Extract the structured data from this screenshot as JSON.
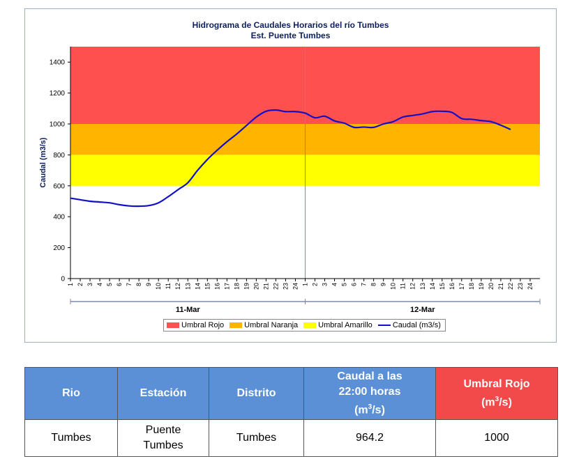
{
  "chart_data": {
    "type": "line",
    "title": "Hidrograma de Caudales Horarios del río Tumbes",
    "subtitle": "Est. Puente Tumbes",
    "ylabel": "Caudal  (m3/s)",
    "ylim": [
      0,
      1500
    ],
    "yticks": [
      0,
      200,
      400,
      600,
      800,
      1000,
      1200,
      1400
    ],
    "days": [
      "11-Mar",
      "12-Mar"
    ],
    "hour_ticks": [
      "1",
      "2",
      "3",
      "4",
      "5",
      "6",
      "7",
      "8",
      "9",
      "10",
      "11",
      "12",
      "13",
      "14",
      "15",
      "16",
      "17",
      "18",
      "19",
      "20",
      "21",
      "22",
      "23",
      "24"
    ],
    "bands": [
      {
        "name": "Umbral Rojo",
        "from": 1000,
        "to": 1500,
        "color": "#ff5050"
      },
      {
        "name": "Umbral Naranja",
        "from": 800,
        "to": 1000,
        "color": "#ffb400"
      },
      {
        "name": "Umbral Amarillo",
        "from": 600,
        "to": 800,
        "color": "#ffff00"
      }
    ],
    "series": [
      {
        "name": "Caudal (m3/s)",
        "color": "#1010c8",
        "x": [
          1,
          2,
          3,
          4,
          5,
          6,
          7,
          8,
          9,
          10,
          11,
          12,
          13,
          14,
          15,
          16,
          17,
          18,
          19,
          20,
          21,
          22,
          23,
          24,
          25,
          26,
          27,
          28,
          29,
          30,
          31,
          32,
          33,
          34,
          35,
          36,
          37,
          38,
          39,
          40,
          41,
          42,
          43,
          44,
          45,
          46
        ],
        "values": [
          520,
          510,
          500,
          495,
          490,
          478,
          470,
          468,
          472,
          490,
          530,
          575,
          620,
          700,
          770,
          830,
          885,
          935,
          990,
          1045,
          1082,
          1090,
          1080,
          1080,
          1070,
          1040,
          1050,
          1020,
          1005,
          978,
          980,
          978,
          1000,
          1015,
          1045,
          1055,
          1065,
          1080,
          1082,
          1075,
          1035,
          1030,
          1022,
          1015,
          992,
          964.2
        ]
      }
    ],
    "legend": [
      "Umbral Rojo",
      "Umbral Naranja",
      "Umbral Amarillo",
      "Caudal (m3/s)"
    ],
    "legend_position": "bottom"
  },
  "table": {
    "headers": {
      "rio": "Rio",
      "estacion": "Estación",
      "distrito": "Distrito",
      "caudal_line1": "Caudal a las",
      "caudal_line2": "22:00 horas",
      "caudal_unit_a": "(m",
      "caudal_unit_sup": "3",
      "caudal_unit_b": "/s)",
      "umbral_line1": "Umbral Rojo",
      "umbral_unit_a": "(m",
      "umbral_unit_sup": "3",
      "umbral_unit_b": "/s)"
    },
    "row": {
      "rio": "Tumbes",
      "estacion_line1": "Puente",
      "estacion_line2": "Tumbes",
      "distrito": "Tumbes",
      "caudal": "964.2",
      "umbral": "1000"
    }
  }
}
